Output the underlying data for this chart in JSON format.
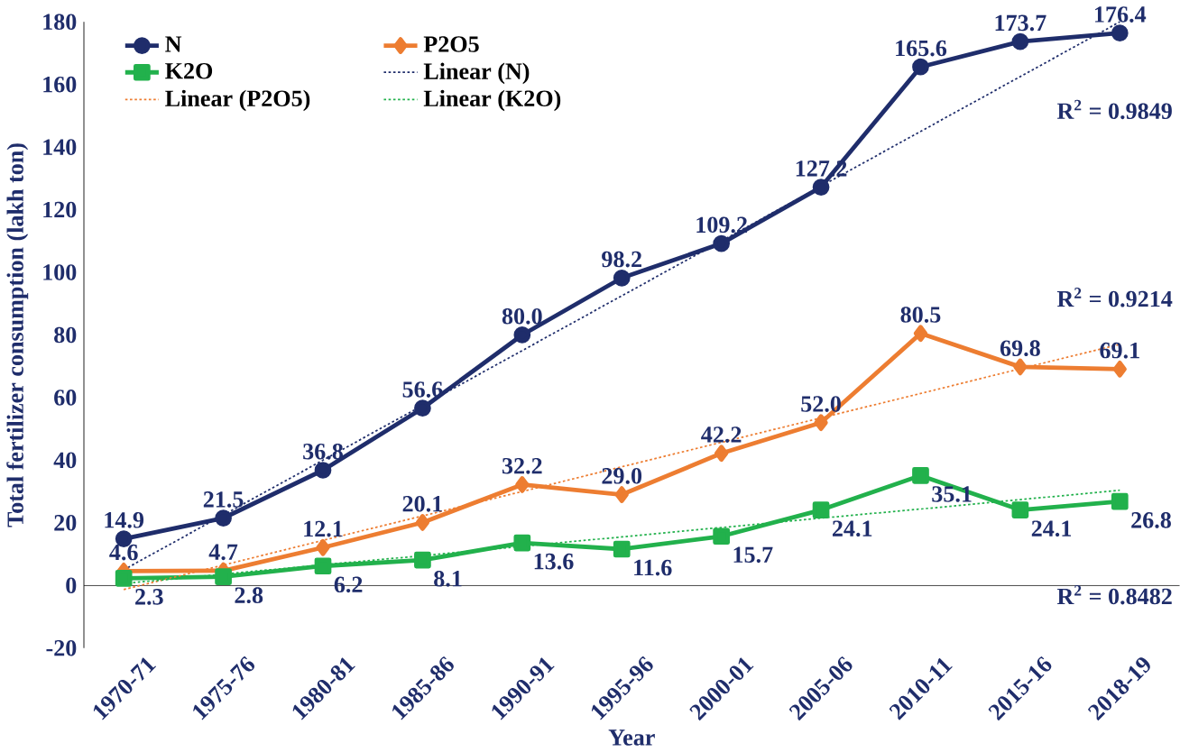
{
  "chart_data": {
    "type": "line",
    "xlabel": "Year",
    "ylabel": "Total fertilizer consumption (lakh ton)",
    "categories": [
      "1970-71",
      "1975-76",
      "1980-81",
      "1985-86",
      "1990-91",
      "1995-96",
      "2000-01",
      "2005-06",
      "2010-11",
      "2015-16",
      "2018-19"
    ],
    "series": [
      {
        "name": "N",
        "color": "#1f2d6b",
        "marker": "circle",
        "values": [
          14.9,
          21.5,
          36.8,
          56.6,
          80.0,
          98.2,
          109.2,
          127.2,
          165.6,
          173.7,
          176.4
        ],
        "value_labels": [
          "14.9",
          "21.5",
          "36.8",
          "56.6",
          "80.0",
          "98.2",
          "109.2",
          "127.2",
          "165.6",
          "173.7",
          "176.4"
        ]
      },
      {
        "name": "P2O5",
        "color": "#ed7d31",
        "marker": "diamond",
        "values": [
          4.6,
          4.7,
          12.1,
          20.1,
          32.2,
          29.0,
          42.2,
          52.0,
          80.5,
          69.8,
          69.1
        ],
        "value_labels": [
          "4.6",
          "4.7",
          "12.1",
          "20.1",
          "32.2",
          "29.0",
          "42.2",
          "52.0",
          "80.5",
          "69.8",
          "69.1"
        ]
      },
      {
        "name": "K2O",
        "color": "#22b14c",
        "marker": "square",
        "values": [
          2.3,
          2.8,
          6.2,
          8.1,
          13.6,
          11.6,
          15.7,
          24.1,
          35.1,
          24.1,
          26.8
        ],
        "value_labels": [
          "2.3",
          "2.8",
          "6.2",
          "8.1",
          "13.6",
          "11.6",
          "15.7",
          "24.1",
          "35.1",
          "24.1",
          "26.8"
        ]
      },
      {
        "name": "Linear (N)",
        "color": "#1f2d6b",
        "line_style": "dotted",
        "type": "line",
        "values": [
          5,
          22.5,
          40,
          57.5,
          75,
          92.5,
          110,
          127.5,
          145,
          162.5,
          180
        ]
      },
      {
        "name": "Linear (P2O5)",
        "color": "#ed7d31",
        "line_style": "dotted",
        "type": "line",
        "values": [
          -1.3,
          6.5,
          14.4,
          22.2,
          30.0,
          37.9,
          45.7,
          53.5,
          61.3,
          69.2,
          77
        ]
      },
      {
        "name": "Linear (K2O)",
        "color": "#22b14c",
        "line_style": "dotted",
        "type": "line",
        "values": [
          0.6,
          3.6,
          6.6,
          9.5,
          12.5,
          15.5,
          18.5,
          21.5,
          24.4,
          27.4,
          30.4
        ]
      }
    ],
    "ylim": [
      -20,
      180
    ],
    "yticks": [
      -20,
      0,
      20,
      40,
      60,
      80,
      100,
      120,
      140,
      160,
      180
    ],
    "grid": false,
    "legend": "top left",
    "ref_lines": [
      {
        "axis": "y",
        "value": 0,
        "color": "#000000"
      }
    ],
    "annotations": [
      "R$^{2}$ = 0.9849",
      "R$^{2}$ = 0.9214",
      "R$^{2}$ = 0.8482"
    ]
  }
}
